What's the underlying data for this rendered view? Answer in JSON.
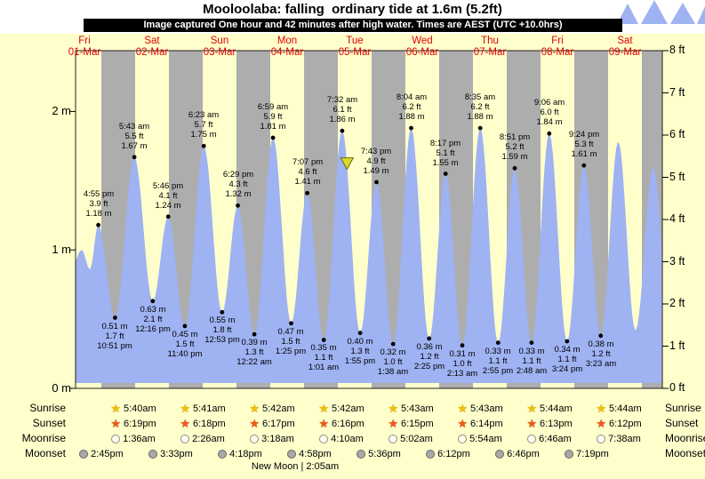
{
  "title": "Mooloolaba: falling  ordinary tide at 1.6m (5.2ft)",
  "banner": "Image captured One hour and 42 minutes after high water. Times are AEST (UTC +10.0hrs)",
  "chart_data": {
    "type": "area",
    "title": "Mooloolaba: falling ordinary tide at 1.6m (5.2ft)",
    "x_axis": {
      "days": [
        {
          "dow": "Fri",
          "date": "01-Mar"
        },
        {
          "dow": "Sat",
          "date": "02-Mar"
        },
        {
          "dow": "Sun",
          "date": "03-Mar"
        },
        {
          "dow": "Mon",
          "date": "04-Mar"
        },
        {
          "dow": "Tue",
          "date": "05-Mar"
        },
        {
          "dow": "Wed",
          "date": "06-Mar"
        },
        {
          "dow": "Thu",
          "date": "07-Mar"
        },
        {
          "dow": "Fri",
          "date": "08-Mar"
        },
        {
          "dow": "Sat",
          "date": "09-Mar"
        }
      ]
    },
    "y_axis_left": {
      "unit": "m",
      "ticks": [
        {
          "label": "0 m",
          "value": 0
        },
        {
          "label": "1 m",
          "value": 1
        },
        {
          "label": "2 m",
          "value": 2
        }
      ]
    },
    "y_axis_right": {
      "unit": "ft",
      "ticks": [
        "0 ft",
        "1 ft",
        "2 ft",
        "3 ft",
        "4 ft",
        "5 ft",
        "6 ft",
        "7 ft",
        "8 ft"
      ]
    },
    "colors": {
      "day": "#ffffcc",
      "night": "#adadad",
      "area": "#9fb2f2",
      "dot": "#000000",
      "marker": "#d9d832"
    },
    "tides": [
      {
        "kind": "high",
        "time": "4:55 pm",
        "height_ft": "3.9 ft",
        "height_m": "1.18 m",
        "t": 0.705,
        "h": 1.18
      },
      {
        "kind": "low",
        "time": "10:51 pm",
        "height_ft": "1.7 ft",
        "height_m": "0.51 m",
        "t": 0.952,
        "h": 0.51
      },
      {
        "kind": "high",
        "time": "5:43 am",
        "height_ft": "5.5 ft",
        "height_m": "1.67 m",
        "t": 1.238,
        "h": 1.67
      },
      {
        "kind": "low",
        "time": "12:16 pm",
        "height_ft": "2.1 ft",
        "height_m": "0.63 m",
        "t": 1.511,
        "h": 0.63
      },
      {
        "kind": "high",
        "time": "5:46 pm",
        "height_ft": "4.1 ft",
        "height_m": "1.24 m",
        "t": 1.74,
        "h": 1.24
      },
      {
        "kind": "low",
        "time": "11:40 pm",
        "height_ft": "1.5 ft",
        "height_m": "0.45 m",
        "t": 1.986,
        "h": 0.45
      },
      {
        "kind": "high",
        "time": "6:23 am",
        "height_ft": "5.7 ft",
        "height_m": "1.75 m",
        "t": 2.266,
        "h": 1.75
      },
      {
        "kind": "low",
        "time": "12:53 pm",
        "height_ft": "1.8 ft",
        "height_m": "0.55 m",
        "t": 2.537,
        "h": 0.55
      },
      {
        "kind": "high",
        "time": "6:29 pm",
        "height_ft": "4.3 ft",
        "height_m": "1.32 m",
        "t": 2.77,
        "h": 1.32
      },
      {
        "kind": "low",
        "time": "12:22 am",
        "height_ft": "1.3 ft",
        "height_m": "0.39 m",
        "t": 3.015,
        "h": 0.39
      },
      {
        "kind": "high",
        "time": "6:59 am",
        "height_ft": "5.9 ft",
        "height_m": "1.81 m",
        "t": 3.291,
        "h": 1.81
      },
      {
        "kind": "low",
        "time": "1:25 pm",
        "height_ft": "1.5 ft",
        "height_m": "0.47 m",
        "t": 3.559,
        "h": 0.47
      },
      {
        "kind": "high",
        "time": "7:07 pm",
        "height_ft": "4.6 ft",
        "height_m": "1.41 m",
        "t": 3.797,
        "h": 1.41
      },
      {
        "kind": "low",
        "time": "1:01 am",
        "height_ft": "1.1 ft",
        "height_m": "0.35 m",
        "t": 4.042,
        "h": 0.35
      },
      {
        "kind": "high",
        "time": "7:32 am",
        "height_ft": "6.1 ft",
        "height_m": "1.86 m",
        "t": 4.314,
        "h": 1.86
      },
      {
        "kind": "low",
        "time": "1:55 pm",
        "height_ft": "1.3 ft",
        "height_m": "0.40 m",
        "t": 4.58,
        "h": 0.4
      },
      {
        "kind": "high",
        "time": "7:43 pm",
        "height_ft": "4.9 ft",
        "height_m": "1.49 m",
        "t": 4.822,
        "h": 1.49
      },
      {
        "kind": "low",
        "time": "1:38 am",
        "height_ft": "1.0 ft",
        "height_m": "0.32 m",
        "t": 5.068,
        "h": 0.32
      },
      {
        "kind": "high",
        "time": "8:04 am",
        "height_ft": "6.2 ft",
        "height_m": "1.88 m",
        "t": 5.336,
        "h": 1.88
      },
      {
        "kind": "low",
        "time": "2:25 pm",
        "height_ft": "1.2 ft",
        "height_m": "0.36 m",
        "t": 5.601,
        "h": 0.36
      },
      {
        "kind": "high",
        "time": "8:17 pm",
        "height_ft": "5.1 ft",
        "height_m": "1.55 m",
        "t": 5.845,
        "h": 1.55
      },
      {
        "kind": "low",
        "time": "2:13 am",
        "height_ft": "1.0 ft",
        "height_m": "0.31 m",
        "t": 6.092,
        "h": 0.31
      },
      {
        "kind": "high",
        "time": "8:35 am",
        "height_ft": "6.2 ft",
        "height_m": "1.88 m",
        "t": 6.358,
        "h": 1.88
      },
      {
        "kind": "low",
        "time": "2:55 pm",
        "height_ft": "1.1 ft",
        "height_m": "0.33 m",
        "t": 6.622,
        "h": 0.33
      },
      {
        "kind": "high",
        "time": "8:51 pm",
        "height_ft": "5.2 ft",
        "height_m": "1.59 m",
        "t": 6.869,
        "h": 1.59
      },
      {
        "kind": "low",
        "time": "2:48 am",
        "height_ft": "1.1 ft",
        "height_m": "0.33 m",
        "t": 7.117,
        "h": 0.33
      },
      {
        "kind": "high",
        "time": "9:06 am",
        "height_ft": "6.0 ft",
        "height_m": "1.84 m",
        "t": 7.379,
        "h": 1.84
      },
      {
        "kind": "low",
        "time": "3:24 pm",
        "height_ft": "1.1 ft",
        "height_m": "0.34 m",
        "t": 7.642,
        "h": 0.34
      },
      {
        "kind": "high",
        "time": "9:24 pm",
        "height_ft": "5.3 ft",
        "height_m": "1.61 m",
        "t": 7.892,
        "h": 1.61
      },
      {
        "kind": "low",
        "time": "3:23 am",
        "height_ft": "1.2 ft",
        "height_m": "0.38 m",
        "t": 8.141,
        "h": 0.38
      }
    ],
    "curve_padding": {
      "pre": [
        {
          "t": 0.3,
          "h": 0.86
        },
        {
          "t": 0.46,
          "h": 1.0
        },
        {
          "t": 0.58,
          "h": 0.86
        }
      ],
      "post": [
        {
          "t": 8.4,
          "h": 1.78
        },
        {
          "t": 8.655,
          "h": 0.42
        },
        {
          "t": 8.92,
          "h": 1.6
        },
        {
          "t": 9.15,
          "h": 0.55
        }
      ]
    },
    "current_marker": {
      "t": 4.385,
      "height_m": 1.62
    }
  },
  "sun_moon": {
    "rows": [
      {
        "label": "Sunrise",
        "icon": "sunrise-star",
        "times": [
          "5:40am",
          "5:41am",
          "5:42am",
          "5:42am",
          "5:43am",
          "5:43am",
          "5:44am",
          "5:44am"
        ]
      },
      {
        "label": "Sunset",
        "icon": "sunset-star",
        "times": [
          "6:19pm",
          "6:18pm",
          "6:17pm",
          "6:16pm",
          "6:15pm",
          "6:14pm",
          "6:13pm",
          "6:12pm"
        ]
      },
      {
        "label": "Moonrise",
        "icon": "moonrise-circle",
        "times": [
          "1:36am",
          "2:26am",
          "3:18am",
          "4:10am",
          "5:02am",
          "5:54am",
          "6:46am",
          "7:38am"
        ]
      },
      {
        "label": "Moonset",
        "icon": "moonset-circle",
        "times": [
          "2:45pm",
          "3:33pm",
          "4:18pm",
          "4:58pm",
          "5:36pm",
          "6:12pm",
          "6:46pm",
          "7:19pm"
        ]
      }
    ],
    "new_moon": "New Moon | 2:05am"
  }
}
